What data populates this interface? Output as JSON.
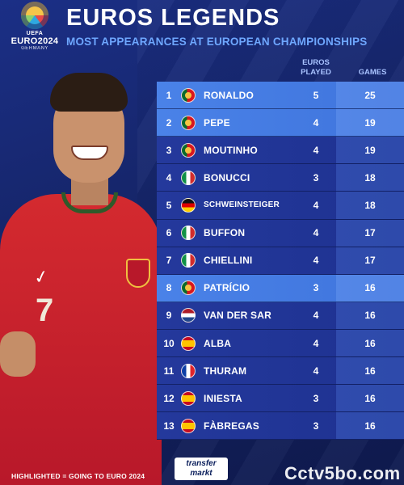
{
  "logo": {
    "uefa": "UEFA",
    "euro": "EURO2024",
    "country": "GERMANY"
  },
  "header": {
    "title": "EUROS LEGENDS",
    "subtitle": "MOST APPEARANCES AT EUROPEAN CHAMPIONSHIPS",
    "col_euros": "EUROS\nPLAYED",
    "col_games": "GAMES"
  },
  "rows": [
    {
      "rank": "1",
      "flag": "portugal-flag-icon",
      "name": "RONALDO",
      "euros": "5",
      "games": "25",
      "highlighted": true
    },
    {
      "rank": "2",
      "flag": "portugal-flag-icon",
      "name": "PEPE",
      "euros": "4",
      "games": "19",
      "highlighted": true
    },
    {
      "rank": "3",
      "flag": "portugal-flag-icon",
      "name": "MOUTINHO",
      "euros": "4",
      "games": "19",
      "highlighted": false
    },
    {
      "rank": "4",
      "flag": "italy-flag-icon",
      "name": "BONUCCI",
      "euros": "3",
      "games": "18",
      "highlighted": false
    },
    {
      "rank": "5",
      "flag": "germany-flag-icon",
      "name": "SCHWEINSTEIGER",
      "euros": "4",
      "games": "18",
      "highlighted": false
    },
    {
      "rank": "6",
      "flag": "italy-flag-icon",
      "name": "BUFFON",
      "euros": "4",
      "games": "17",
      "highlighted": false
    },
    {
      "rank": "7",
      "flag": "italy-flag-icon",
      "name": "CHIELLINI",
      "euros": "4",
      "games": "17",
      "highlighted": false
    },
    {
      "rank": "8",
      "flag": "portugal-flag-icon",
      "name": "PATRÍCIO",
      "euros": "3",
      "games": "16",
      "highlighted": true
    },
    {
      "rank": "9",
      "flag": "netherlands-flag-icon",
      "name": "VAN DER SAR",
      "euros": "4",
      "games": "16",
      "highlighted": false
    },
    {
      "rank": "10",
      "flag": "spain-flag-icon",
      "name": "ALBA",
      "euros": "4",
      "games": "16",
      "highlighted": false
    },
    {
      "rank": "11",
      "flag": "france-flag-icon",
      "name": "THURAM",
      "euros": "4",
      "games": "16",
      "highlighted": false
    },
    {
      "rank": "12",
      "flag": "spain-flag-icon",
      "name": "INIESTA",
      "euros": "3",
      "games": "16",
      "highlighted": false
    },
    {
      "rank": "13",
      "flag": "spain-flag-icon",
      "name": "FÀBREGAS",
      "euros": "3",
      "games": "16",
      "highlighted": false
    }
  ],
  "player": {
    "shirt_number": "7"
  },
  "footer": {
    "note": "HIGHLIGHTED = GOING TO EURO 2024",
    "brand_line1": "transfer",
    "brand_line2": "markt",
    "watermark": "Cctv5bo.com"
  },
  "colors": {
    "background": "#152466",
    "row": "#24399c",
    "row_highlight": "#4a82e8",
    "subtitle": "#6ea7ff"
  }
}
